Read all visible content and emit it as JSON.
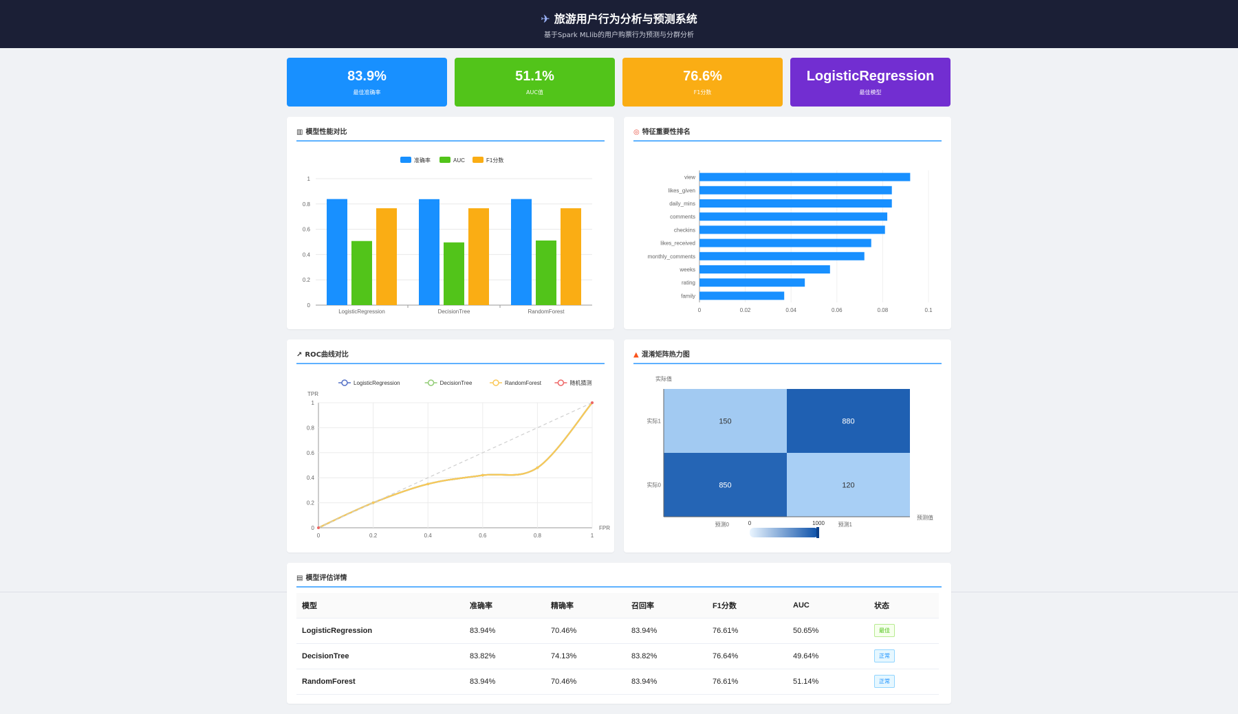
{
  "header": {
    "icon": "airplane-icon",
    "title": "旅游用户行为分析与预测系统",
    "subtitle": "基于Spark MLlib的用户购票行为预测与分群分析"
  },
  "cards": [
    {
      "value": "83.9%",
      "label": "最佳准确率",
      "color": "#1890ff"
    },
    {
      "value": "51.1%",
      "label": "AUC值",
      "color": "#52c41a"
    },
    {
      "value": "76.6%",
      "label": "F1分数",
      "color": "#faad14"
    },
    {
      "value": "LogisticRegression",
      "label": "最佳模型",
      "color": "#722ed1"
    }
  ],
  "panels": {
    "perf": {
      "title": "模型性能对比",
      "icon": "bar-chart-icon"
    },
    "feature": {
      "title": "特征重要性排名",
      "icon": "target-icon"
    },
    "roc": {
      "title": "ROC曲线对比",
      "icon": "line-chart-icon"
    },
    "confusion": {
      "title": "混淆矩阵热力图",
      "icon": "fire-icon"
    },
    "table": {
      "title": "模型评估详情",
      "icon": "table-icon"
    }
  },
  "chart_data": [
    {
      "type": "bar",
      "categories": [
        "LogisticRegression",
        "DecisionTree",
        "RandomForest"
      ],
      "series": [
        {
          "name": "准确率",
          "values": [
            0.839,
            0.838,
            0.839
          ],
          "color": "#1890ff"
        },
        {
          "name": "AUC",
          "values": [
            0.507,
            0.496,
            0.511
          ],
          "color": "#52c41a"
        },
        {
          "name": "F1分数",
          "values": [
            0.766,
            0.766,
            0.766
          ],
          "color": "#faad14"
        }
      ],
      "ylim": [
        0,
        1
      ],
      "yticks": [
        0,
        0.2,
        0.4,
        0.6,
        0.8,
        1
      ],
      "legend": "top"
    },
    {
      "type": "bar",
      "orientation": "horizontal",
      "categories": [
        "view",
        "likes_given",
        "daily_mins",
        "comments",
        "checkins",
        "likes_received",
        "monthly_comments",
        "weeks",
        "rating",
        "family"
      ],
      "values": [
        0.092,
        0.084,
        0.084,
        0.082,
        0.081,
        0.075,
        0.072,
        0.057,
        0.046,
        0.037
      ],
      "color": "#1890ff",
      "xlim": [
        0,
        0.1
      ],
      "xticks": [
        0,
        0.02,
        0.04,
        0.06,
        0.08,
        0.1
      ]
    },
    {
      "type": "line",
      "xlabel": "FPR",
      "ylabel": "TPR",
      "xlim": [
        0,
        1
      ],
      "ylim": [
        0,
        1
      ],
      "ticks": [
        0,
        0.2,
        0.4,
        0.6,
        0.8,
        1
      ],
      "legend": "top",
      "series": [
        {
          "name": "LogisticRegression",
          "color": "#5470c6",
          "x": [
            0,
            0.2,
            0.4,
            0.6,
            0.8,
            1
          ],
          "y": [
            0,
            0.2,
            0.35,
            0.42,
            0.48,
            1
          ]
        },
        {
          "name": "DecisionTree",
          "color": "#91cc75",
          "x": [
            0,
            0.2,
            0.4,
            0.6,
            0.8,
            1
          ],
          "y": [
            0,
            0.2,
            0.35,
            0.42,
            0.48,
            1
          ]
        },
        {
          "name": "RandomForest",
          "color": "#fac858",
          "x": [
            0,
            0.2,
            0.4,
            0.6,
            0.8,
            1
          ],
          "y": [
            0,
            0.2,
            0.35,
            0.42,
            0.48,
            1
          ]
        },
        {
          "name": "随机猜测",
          "color": "#ee6666",
          "dashed": true,
          "x": [
            0,
            1
          ],
          "y": [
            0,
            1
          ]
        }
      ]
    },
    {
      "type": "heatmap",
      "ylabel": "实际值",
      "xlabel": "预测值",
      "rows": [
        "实际1",
        "实际0"
      ],
      "cols": [
        "预测0",
        "预测1"
      ],
      "values": [
        [
          150,
          880
        ],
        [
          850,
          120
        ]
      ],
      "visual_range": [
        0,
        1000
      ],
      "colors": [
        "#bde0ff",
        "#0a4fa8"
      ]
    }
  ],
  "table": {
    "headers": [
      "模型",
      "准确率",
      "精确率",
      "召回率",
      "F1分数",
      "AUC",
      "状态"
    ],
    "rows": [
      {
        "model": "LogisticRegression",
        "accuracy": "83.94%",
        "precision": "70.46%",
        "recall": "83.94%",
        "f1": "76.61%",
        "auc": "50.65%",
        "status": "最佳",
        "status_type": "best"
      },
      {
        "model": "DecisionTree",
        "accuracy": "83.82%",
        "precision": "74.13%",
        "recall": "83.82%",
        "f1": "76.64%",
        "auc": "49.64%",
        "status": "正常",
        "status_type": "normal"
      },
      {
        "model": "RandomForest",
        "accuracy": "83.94%",
        "precision": "70.46%",
        "recall": "83.94%",
        "f1": "76.61%",
        "auc": "51.14%",
        "status": "正常",
        "status_type": "normal"
      }
    ]
  }
}
